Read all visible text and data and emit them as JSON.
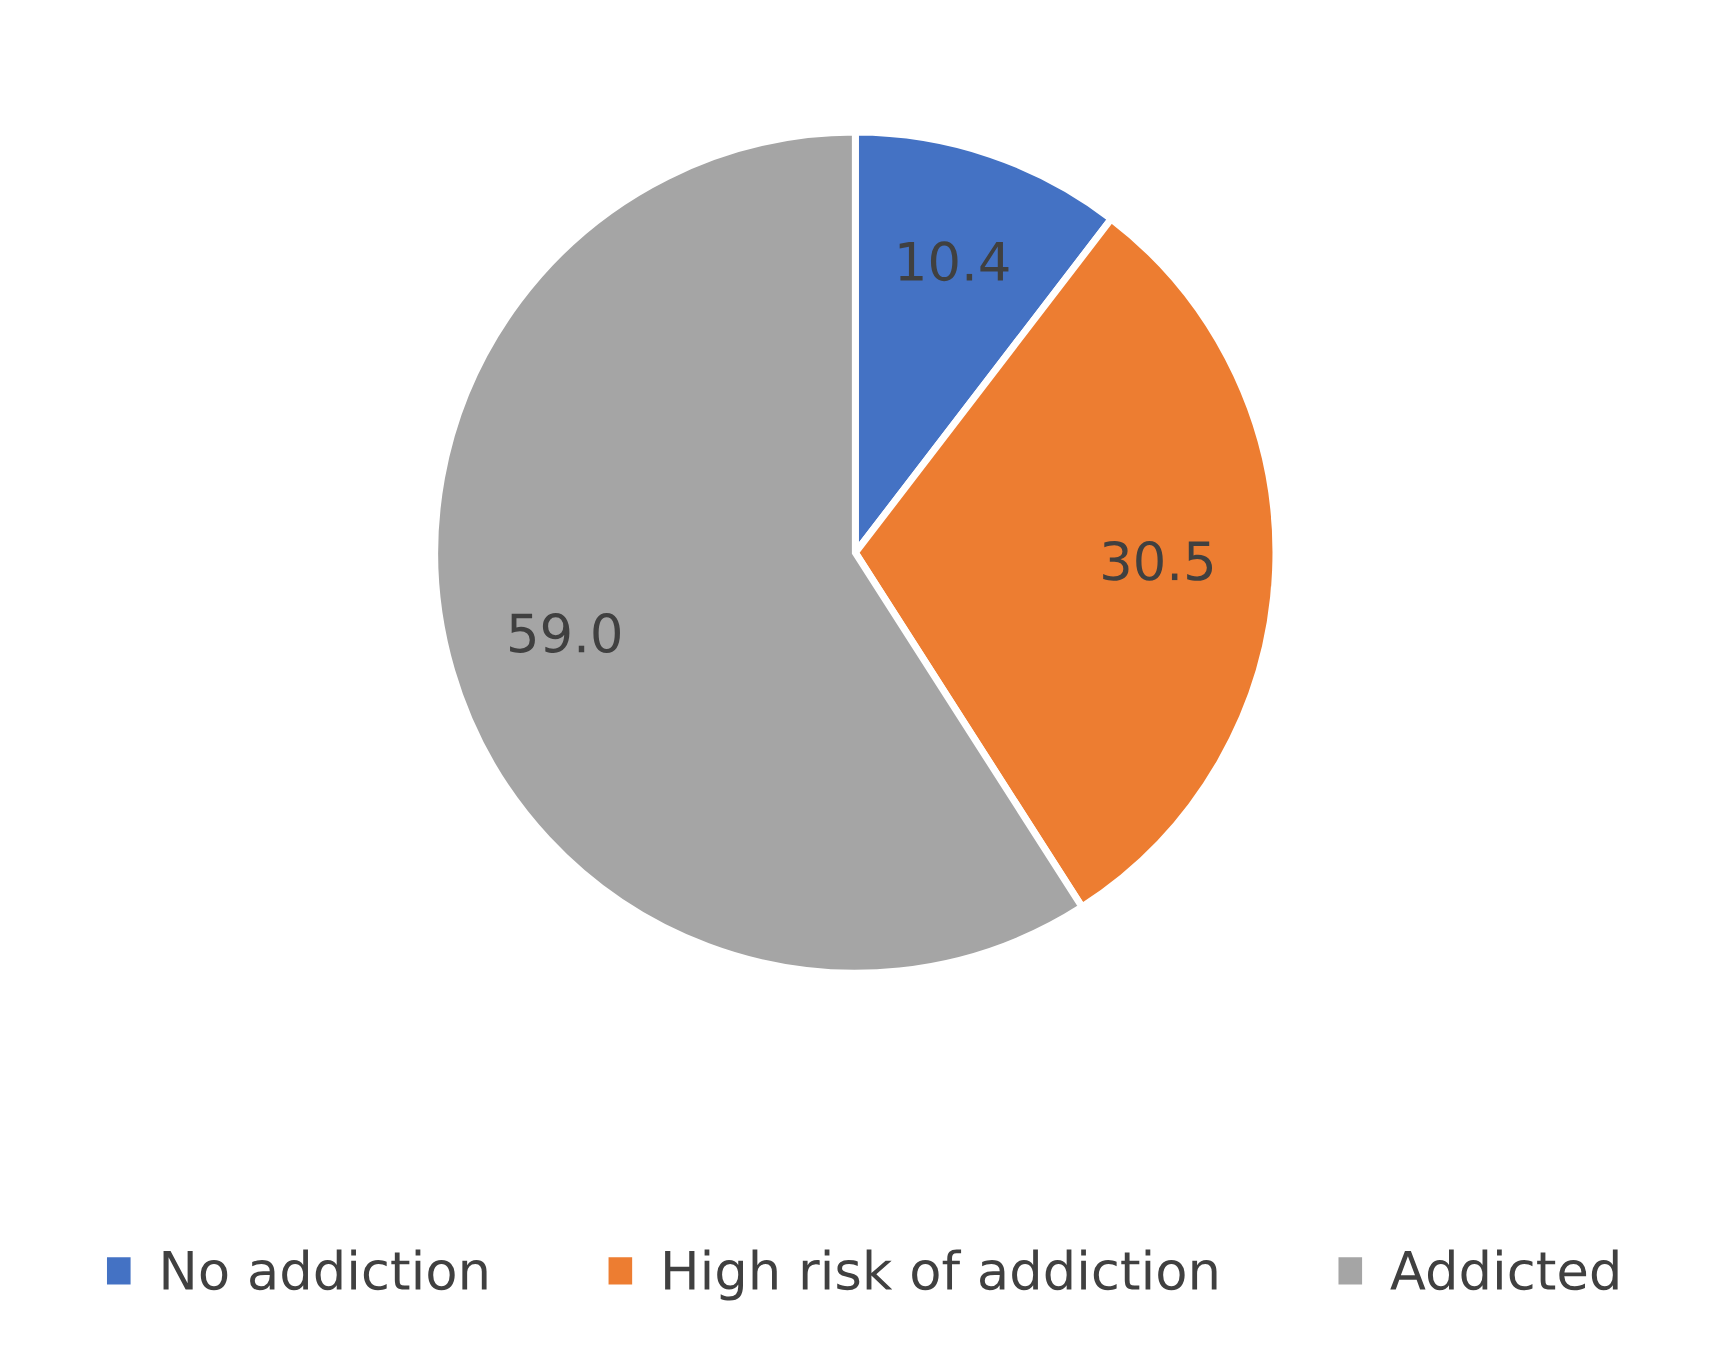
{
  "chart_data": {
    "type": "pie",
    "categories": [
      "No addiction",
      "High risk of addiction",
      "Addicted"
    ],
    "values": [
      10.4,
      30.5,
      59.0
    ],
    "value_labels": [
      "10.4",
      "30.5",
      "59.0"
    ],
    "colors": [
      "#4472c4",
      "#ed7d31",
      "#a5a5a5"
    ],
    "legend": "bottom"
  }
}
